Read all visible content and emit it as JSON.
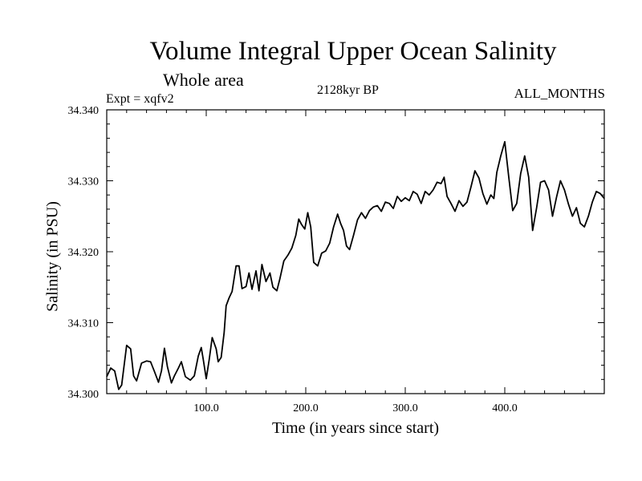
{
  "title": "Volume Integral Upper Ocean Salinity",
  "subtitle": "Whole area",
  "header_left": "Expt = xqfv2",
  "header_center": "2128kyr BP",
  "header_right": "ALL_MONTHS",
  "chart_data": {
    "type": "line",
    "title": "Volume Integral Upper Ocean Salinity",
    "subtitle": "Whole area",
    "xlabel": "Time (in years since start)",
    "ylabel": "Salinity (in PSU)",
    "xlim": [
      0,
      500
    ],
    "ylim": [
      34.3,
      34.34
    ],
    "xticks": [
      100,
      200,
      300,
      400
    ],
    "xtick_labels": [
      "100.0",
      "200.0",
      "300.0",
      "400.0"
    ],
    "yticks": [
      34.3,
      34.31,
      34.32,
      34.33,
      34.34
    ],
    "ytick_labels": [
      "34.300",
      "34.310",
      "34.320",
      "34.330",
      "34.340"
    ],
    "grid": false,
    "series": [
      {
        "name": "salinity",
        "x": [
          0,
          4,
          8,
          12,
          15,
          20,
          24,
          27,
          30,
          35,
          40,
          44,
          48,
          52,
          55,
          58,
          61,
          65,
          68,
          72,
          75,
          79,
          84,
          88,
          92,
          95,
          97,
          100,
          103,
          106,
          110,
          112,
          115,
          118,
          120,
          123,
          126,
          130,
          133,
          136,
          140,
          143,
          146,
          150,
          153,
          156,
          160,
          164,
          167,
          171,
          174,
          178,
          182,
          186,
          190,
          193,
          196,
          199,
          202,
          205,
          208,
          212,
          216,
          220,
          224,
          228,
          232,
          235,
          238,
          241,
          244,
          248,
          252,
          256,
          260,
          264,
          268,
          272,
          276,
          280,
          284,
          288,
          292,
          296,
          300,
          304,
          308,
          312,
          316,
          320,
          324,
          328,
          332,
          336,
          339,
          342,
          346,
          350,
          354,
          358,
          362,
          366,
          370,
          374,
          378,
          382,
          386,
          389,
          392,
          396,
          400,
          404,
          408,
          412,
          416,
          420,
          424,
          428,
          432,
          436,
          440,
          444,
          448,
          452,
          456,
          460,
          464,
          468,
          472,
          476,
          480,
          484,
          488,
          492,
          496,
          500
        ],
        "y": [
          34.3024,
          34.3036,
          34.3032,
          34.3006,
          34.3012,
          34.3068,
          34.3063,
          34.3025,
          34.3018,
          34.3043,
          34.3046,
          34.3045,
          34.3031,
          34.3016,
          34.3032,
          34.3064,
          34.3038,
          34.3015,
          34.3025,
          34.3036,
          34.3045,
          34.3024,
          34.3019,
          34.3025,
          34.3053,
          34.3065,
          34.3048,
          34.3021,
          34.3048,
          34.3079,
          34.3063,
          34.3045,
          34.3051,
          34.3086,
          34.3124,
          34.3135,
          34.3144,
          34.318,
          34.318,
          34.3148,
          34.3151,
          34.317,
          34.3147,
          34.3173,
          34.3145,
          34.3182,
          34.3158,
          34.317,
          34.315,
          34.3145,
          34.3162,
          34.3187,
          34.3195,
          34.3205,
          34.3223,
          34.3246,
          34.3238,
          34.3232,
          34.3255,
          34.3235,
          34.3185,
          34.318,
          34.3198,
          34.3201,
          34.3212,
          34.3235,
          34.3253,
          34.324,
          34.323,
          34.3208,
          34.3203,
          34.3223,
          34.3245,
          34.3255,
          34.3247,
          34.3258,
          34.3263,
          34.3265,
          34.3257,
          34.327,
          34.3268,
          34.3261,
          34.3278,
          34.3271,
          34.3276,
          34.3272,
          34.3285,
          34.3281,
          34.3268,
          34.3285,
          34.328,
          34.3287,
          34.3298,
          34.3296,
          34.3305,
          34.3278,
          34.3268,
          34.3257,
          34.3272,
          34.3264,
          34.327,
          34.3291,
          34.3314,
          34.3304,
          34.3282,
          34.3267,
          34.328,
          34.3275,
          34.3312,
          34.3335,
          34.3355,
          34.3305,
          34.3258,
          34.3268,
          34.331,
          34.3335,
          34.3305,
          34.323,
          34.3262,
          34.3298,
          34.33,
          34.3287,
          34.325,
          34.3277,
          34.33,
          34.3287,
          34.3267,
          34.325,
          34.3262,
          34.324,
          34.3235,
          34.325,
          34.327,
          34.3285,
          34.3282,
          34.3275
        ]
      }
    ]
  }
}
